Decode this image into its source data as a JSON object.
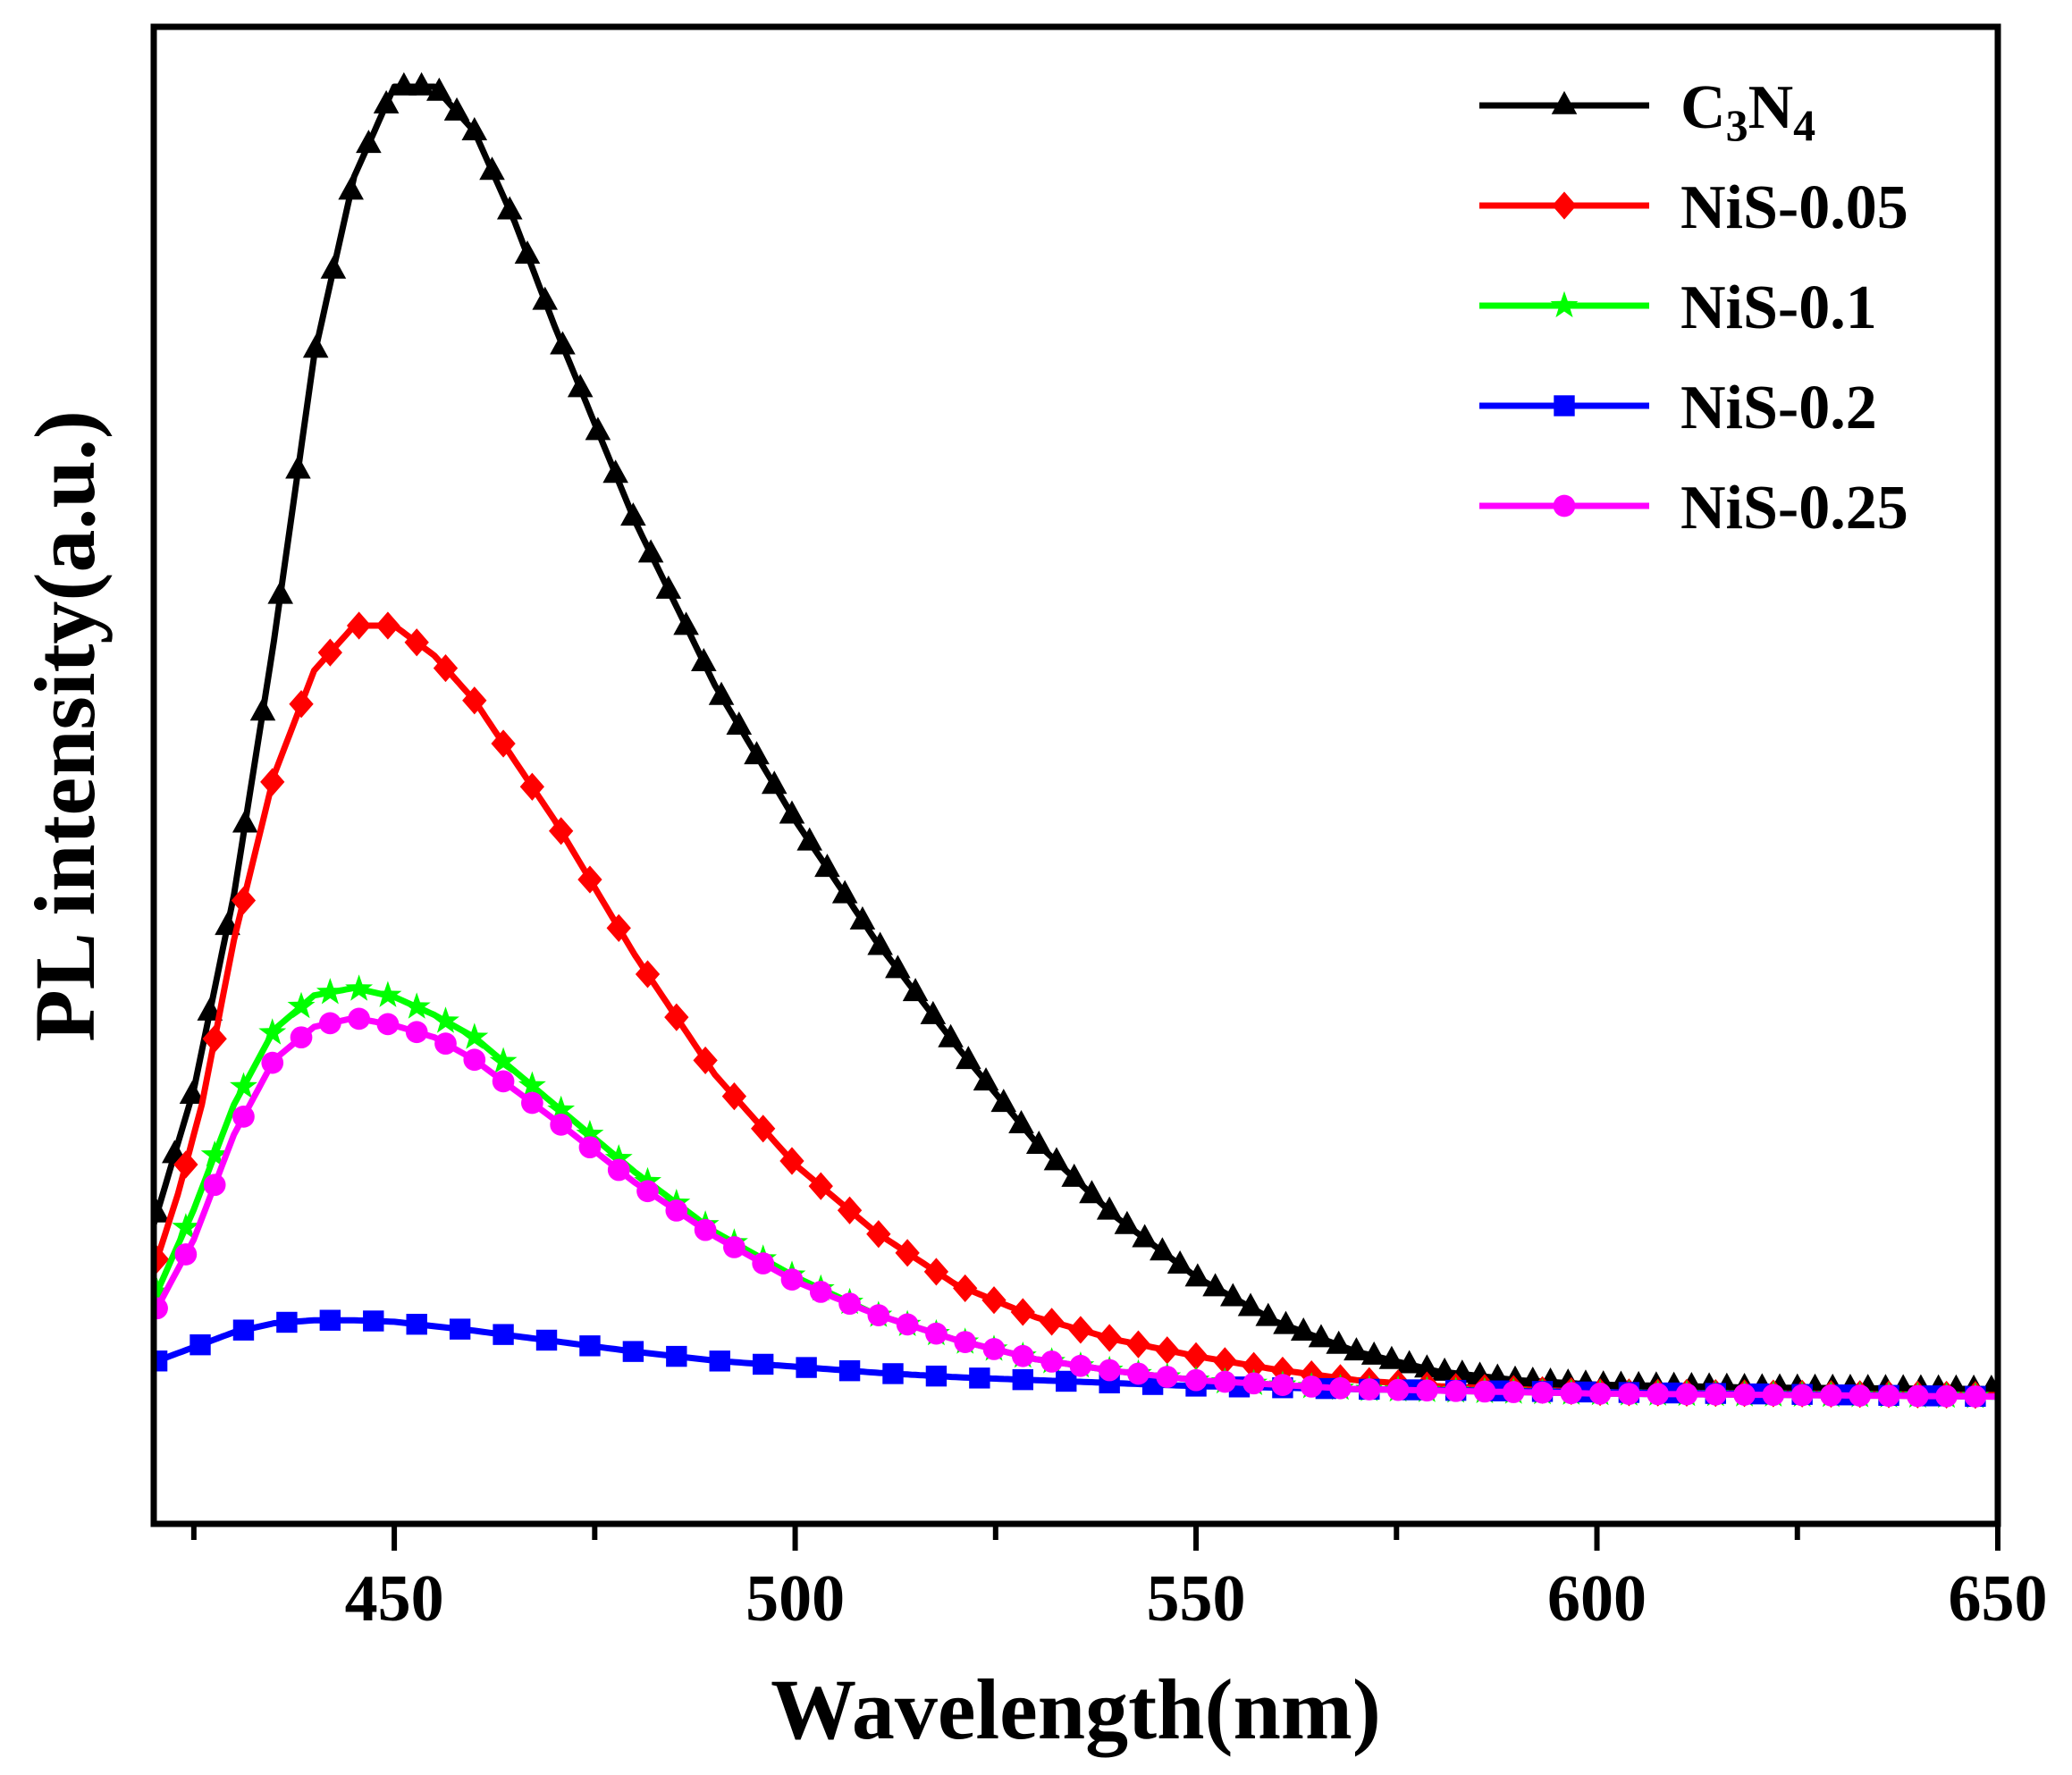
{
  "chart_data": {
    "type": "line",
    "title": "",
    "xlabel": "Wavelength(nm)",
    "ylabel": "PL intensity(a.u.)",
    "xlim": [
      420,
      650
    ],
    "ylim": [
      0,
      100
    ],
    "x_ticks": [
      450,
      500,
      550,
      600,
      650
    ],
    "y_ticks": [],
    "grid": false,
    "legend_position": "top-right",
    "series": [
      {
        "name": "C3N4",
        "label_main": "C",
        "label_sub1": "3",
        "label_mid": "N",
        "label_sub2": "4",
        "color": "#000000",
        "marker": "triangle",
        "peak": 453,
        "points": [
          [
            420,
            20
          ],
          [
            425,
            29
          ],
          [
            430,
            42
          ],
          [
            435,
            59
          ],
          [
            440,
            78
          ],
          [
            445,
            90
          ],
          [
            450,
            96
          ],
          [
            455,
            96
          ],
          [
            460,
            93
          ],
          [
            465,
            87
          ],
          [
            470,
            80
          ],
          [
            480,
            67
          ],
          [
            490,
            56
          ],
          [
            500,
            47
          ],
          [
            510,
            39
          ],
          [
            520,
            32
          ],
          [
            530,
            25.5
          ],
          [
            540,
            20.5
          ],
          [
            550,
            16.5
          ],
          [
            560,
            13.5
          ],
          [
            570,
            11.5
          ],
          [
            580,
            10.2
          ],
          [
            590,
            9.6
          ],
          [
            600,
            9.3
          ],
          [
            620,
            9.1
          ],
          [
            650,
            9
          ]
        ]
      },
      {
        "name": "NiS-0.05",
        "color": "#ff0000",
        "marker": "diamond",
        "peak": 449,
        "points": [
          [
            420,
            17
          ],
          [
            423,
            22
          ],
          [
            426,
            28
          ],
          [
            430,
            39
          ],
          [
            435,
            50
          ],
          [
            440,
            57
          ],
          [
            445,
            60
          ],
          [
            450,
            60
          ],
          [
            455,
            58
          ],
          [
            460,
            55
          ],
          [
            470,
            47
          ],
          [
            480,
            38
          ],
          [
            490,
            30
          ],
          [
            500,
            24
          ],
          [
            510,
            19.5
          ],
          [
            520,
            16
          ],
          [
            530,
            13.8
          ],
          [
            540,
            12.3
          ],
          [
            550,
            11.2
          ],
          [
            560,
            10.3
          ],
          [
            570,
            9.6
          ],
          [
            580,
            9.2
          ],
          [
            600,
            8.8
          ],
          [
            650,
            8.6
          ]
        ]
      },
      {
        "name": "NiS-0.1",
        "color": "#00ff00",
        "marker": "star",
        "peak": 445,
        "points": [
          [
            420,
            15
          ],
          [
            425,
            21
          ],
          [
            430,
            28
          ],
          [
            435,
            33
          ],
          [
            440,
            35.3
          ],
          [
            445,
            35.8
          ],
          [
            450,
            35.2
          ],
          [
            455,
            34
          ],
          [
            460,
            32.5
          ],
          [
            470,
            28
          ],
          [
            480,
            23.5
          ],
          [
            490,
            19.5
          ],
          [
            500,
            16.5
          ],
          [
            510,
            14
          ],
          [
            520,
            12.3
          ],
          [
            530,
            11
          ],
          [
            540,
            10.2
          ],
          [
            550,
            9.6
          ],
          [
            570,
            9
          ],
          [
            600,
            8.7
          ],
          [
            650,
            8.5
          ]
        ]
      },
      {
        "name": "NiS-0.2",
        "color": "#0000ff",
        "marker": "square",
        "peak": 447,
        "points": [
          [
            420,
            10.8
          ],
          [
            425,
            11.8
          ],
          [
            430,
            12.8
          ],
          [
            435,
            13.4
          ],
          [
            440,
            13.6
          ],
          [
            445,
            13.6
          ],
          [
            450,
            13.5
          ],
          [
            455,
            13.2
          ],
          [
            460,
            12.9
          ],
          [
            470,
            12.2
          ],
          [
            480,
            11.5
          ],
          [
            490,
            10.9
          ],
          [
            500,
            10.5
          ],
          [
            510,
            10.1
          ],
          [
            520,
            9.8
          ],
          [
            530,
            9.6
          ],
          [
            540,
            9.4
          ],
          [
            550,
            9.2
          ],
          [
            570,
            9
          ],
          [
            600,
            8.8
          ],
          [
            650,
            8.5
          ]
        ]
      },
      {
        "name": "NiS-0.25",
        "color": "#ff00ff",
        "marker": "circle",
        "peak": 446,
        "points": [
          [
            420,
            14
          ],
          [
            425,
            19
          ],
          [
            430,
            26
          ],
          [
            435,
            31
          ],
          [
            440,
            33.2
          ],
          [
            445,
            33.8
          ],
          [
            450,
            33.3
          ],
          [
            455,
            32.5
          ],
          [
            460,
            31
          ],
          [
            470,
            27
          ],
          [
            480,
            22.8
          ],
          [
            490,
            19.2
          ],
          [
            500,
            16.2
          ],
          [
            510,
            14
          ],
          [
            520,
            12.3
          ],
          [
            530,
            11
          ],
          [
            540,
            10.2
          ],
          [
            550,
            9.6
          ],
          [
            570,
            9
          ],
          [
            600,
            8.7
          ],
          [
            650,
            8.5
          ]
        ]
      }
    ]
  }
}
